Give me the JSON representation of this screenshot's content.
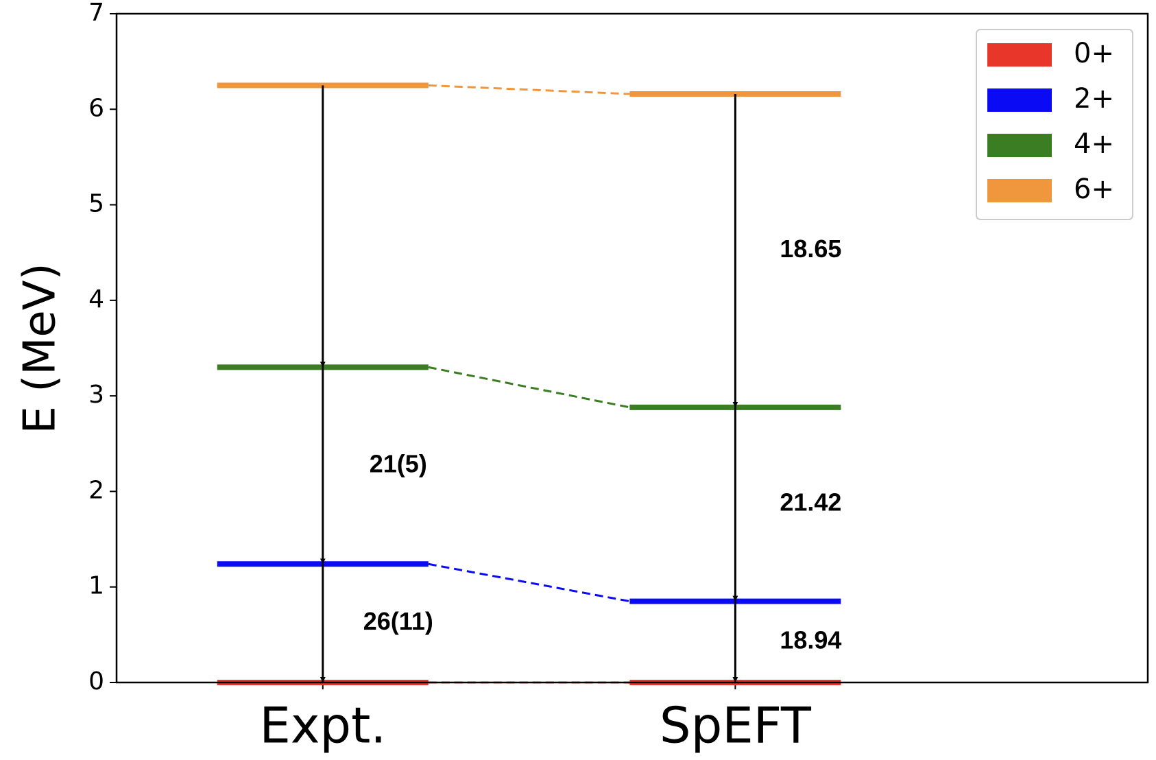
{
  "chart_data": {
    "type": "level-scheme",
    "ylabel": "E (MeV)",
    "categories": [
      "Expt.",
      "SpEFT"
    ],
    "xlim": [
      -0.5,
      2
    ],
    "ylim": [
      0,
      7
    ],
    "yticks": [
      0,
      1,
      2,
      3,
      4,
      5,
      6,
      7
    ],
    "legend": "upper right",
    "series": [
      {
        "name": "0+",
        "color": "#e8372a",
        "values": [
          0,
          0
        ]
      },
      {
        "name": "2+",
        "color": "#0a0af5",
        "values": [
          1.24,
          0.85
        ]
      },
      {
        "name": "4+",
        "color": "#3a7d22",
        "values": [
          3.3,
          2.88
        ]
      },
      {
        "name": "6+",
        "color": "#f0963c",
        "values": [
          6.25,
          6.16
        ]
      }
    ],
    "transition_labels": [
      [
        "26(11)",
        "21(5)",
        null
      ],
      [
        "18.94",
        "21.42",
        "18.65"
      ]
    ]
  }
}
